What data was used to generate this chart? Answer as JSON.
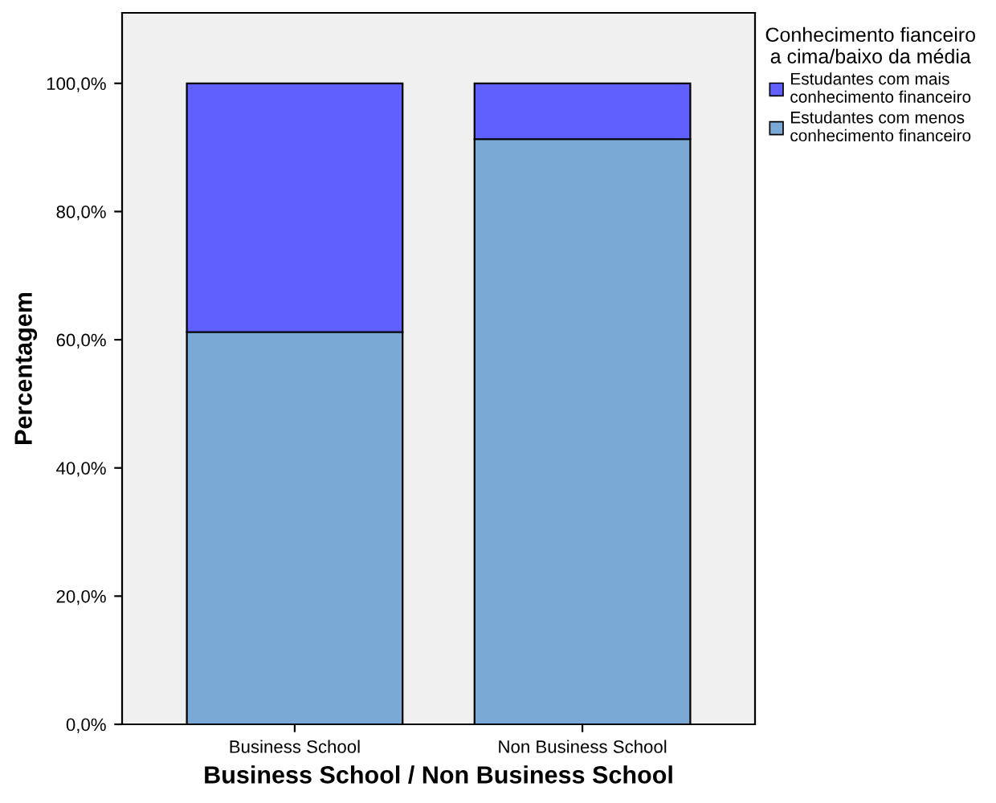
{
  "chart_data": {
    "type": "bar",
    "stacked": true,
    "xlabel": "Business School / Non Business School",
    "ylabel": "Percentagem",
    "legend_title": "Conhecimento fianceiro\na cima/baixo da média",
    "legend": "top right",
    "categories": [
      "Business School",
      "Non Business School"
    ],
    "series": [
      {
        "name": "Estudantes com menos\nconhecimento financeiro",
        "color": "#7ba9d6",
        "values": [
          61.2,
          91.3
        ]
      },
      {
        "name": "Estudantes com mais\nconhecimento financeiro",
        "color": "#5f60ff",
        "values": [
          38.8,
          8.7
        ]
      }
    ],
    "ylim": [
      0,
      111
    ],
    "yticks": [
      {
        "value": 0,
        "label": "0,0%"
      },
      {
        "value": 20,
        "label": "20,0%"
      },
      {
        "value": 40,
        "label": "40,0%"
      },
      {
        "value": 60,
        "label": "60,0%"
      },
      {
        "value": 80,
        "label": "80,0%"
      },
      {
        "value": 100,
        "label": "100,0%"
      }
    ],
    "grid": false
  }
}
